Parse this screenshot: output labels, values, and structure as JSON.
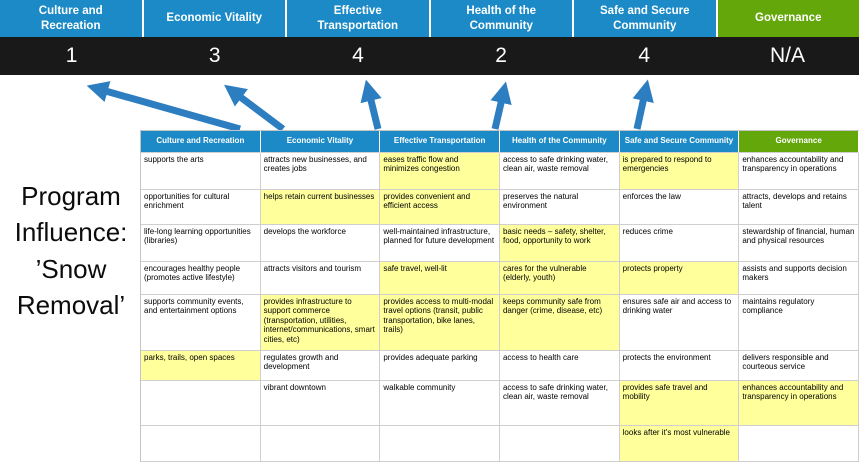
{
  "title": "Program Influence: ’Snow Removal’",
  "colors": {
    "header_blue": "#1b8ac6",
    "header_green": "#64a70b",
    "score_band": "#191919",
    "highlight_yellow": "#ffff9c",
    "arrow_blue": "#2d7dc1"
  },
  "scoreboard": {
    "columns": [
      {
        "label": "Culture and Recreation",
        "score": "1"
      },
      {
        "label": "Economic Vitality",
        "score": "3"
      },
      {
        "label": "Effective Transportation",
        "score": "4"
      },
      {
        "label": "Health of the Community",
        "score": "2"
      },
      {
        "label": "Safe and Secure Community",
        "score": "4"
      },
      {
        "label": "Governance",
        "score": "N/A"
      }
    ]
  },
  "table": {
    "headers": [
      "Culture and Recreation",
      "Economic Vitality",
      "Effective Transportation",
      "Health of the Community",
      "Safe and Secure Community",
      "Governance"
    ],
    "rows": [
      [
        {
          "t": "supports the arts",
          "h": false
        },
        {
          "t": "attracts new businesses, and creates jobs",
          "h": false
        },
        {
          "t": "eases traffic flow and minimizes congestion",
          "h": true
        },
        {
          "t": "access to safe drinking water, clean air, waste removal",
          "h": false
        },
        {
          "t": "is prepared to respond to emergencies",
          "h": true
        },
        {
          "t": "enhances accountability and transparency in operations",
          "h": false
        }
      ],
      [
        {
          "t": "opportunities for cultural enrichment",
          "h": false
        },
        {
          "t": "helps retain current businesses",
          "h": true
        },
        {
          "t": "provides convenient and efficient access",
          "h": true
        },
        {
          "t": "preserves the natural environment",
          "h": false
        },
        {
          "t": "enforces the law",
          "h": false
        },
        {
          "t": "attracts, develops and retains talent",
          "h": false
        }
      ],
      [
        {
          "t": "life-long learning opportunities (libraries)",
          "h": false
        },
        {
          "t": "develops the workforce",
          "h": false
        },
        {
          "t": "well-maintained infrastructure, planned for future development",
          "h": false
        },
        {
          "t": "basic needs – safety, shelter, food, opportunity to work",
          "h": true
        },
        {
          "t": "reduces crime",
          "h": false
        },
        {
          "t": "stewardship of financial, human and physical resources",
          "h": false
        }
      ],
      [
        {
          "t": "encourages healthy people (promotes active lifestyle)",
          "h": false
        },
        {
          "t": "attracts visitors and tourism",
          "h": false
        },
        {
          "t": "safe travel, well-lit",
          "h": true
        },
        {
          "t": "cares for the vulnerable (elderly, youth)",
          "h": true
        },
        {
          "t": "protects property",
          "h": true
        },
        {
          "t": "assists and supports decision makers",
          "h": false
        }
      ],
      [
        {
          "t": "supports community events, and entertainment options",
          "h": false
        },
        {
          "t": "provides infrastructure to support commerce (transportation, utilities, internet/communications, smart cities, etc)",
          "h": true
        },
        {
          "t": "provides access to multi-modal travel options (transit, public transportation, bike lanes, trails)",
          "h": true
        },
        {
          "t": "keeps community safe from danger (crime, disease, etc)",
          "h": true
        },
        {
          "t": "ensures safe air and access to drinking water",
          "h": false
        },
        {
          "t": "maintains regulatory compliance",
          "h": false
        }
      ],
      [
        {
          "t": "parks, trails, open spaces",
          "h": true
        },
        {
          "t": "regulates growth and development",
          "h": false
        },
        {
          "t": "provides adequate parking",
          "h": false
        },
        {
          "t": "access to health care",
          "h": false
        },
        {
          "t": "protects the environment",
          "h": false
        },
        {
          "t": "delivers responsible and courteous service",
          "h": false
        }
      ],
      [
        {
          "t": "",
          "h": false
        },
        {
          "t": "vibrant downtown",
          "h": false
        },
        {
          "t": "walkable community",
          "h": false
        },
        {
          "t": "access to safe drinking water, clean air, waste removal",
          "h": false
        },
        {
          "t": "provides safe travel and mobility",
          "h": true
        },
        {
          "t": "enhances accountability and transparency in operations",
          "h": true
        }
      ],
      [
        {
          "t": "",
          "h": false
        },
        {
          "t": "",
          "h": false
        },
        {
          "t": "",
          "h": false
        },
        {
          "t": "",
          "h": false
        },
        {
          "t": "looks after it's most vulnerable",
          "h": true
        },
        {
          "t": "",
          "h": false
        }
      ]
    ]
  }
}
